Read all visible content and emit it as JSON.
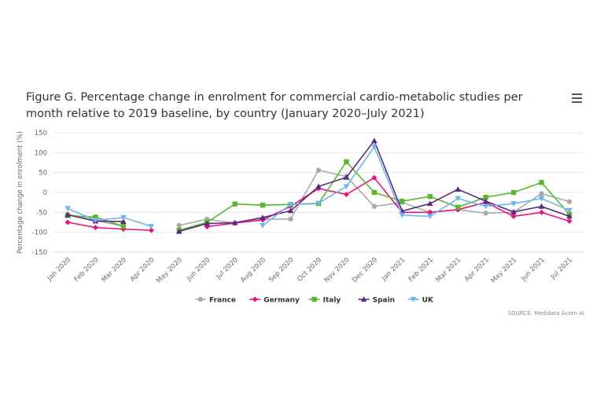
{
  "chart_data": {
    "type": "line",
    "title": "Figure G. Percentage change in enrolment for commercial cardio-metabolic studies per month relative to 2019 baseline, by country (January 2020–July 2021)",
    "xlabel": "",
    "ylabel": "Percentage change in enrolment (%)",
    "ylim": [
      -150,
      150
    ],
    "yticks": [
      150,
      100,
      50,
      0,
      -50,
      -100,
      -150
    ],
    "grid": true,
    "legend_position": "bottom",
    "categories": [
      "Jan 2020",
      "Feb 2020",
      "Mar 2020",
      "Apr 2020",
      "May 2020",
      "Jun 2020",
      "Jul 2020",
      "Aug 2020",
      "Sep 2020",
      "Oct 2020",
      "Nov 2020",
      "Dec 2020",
      "Jan 2021",
      "Feb 2021",
      "Mar 2021",
      "Apr 2021",
      "May 2021",
      "Jun 2021",
      "Jul 2021"
    ],
    "series": [
      {
        "name": "France",
        "color": "#aaaaaa",
        "marker": "circle",
        "values": [
          -55,
          -70,
          -85,
          null,
          -83,
          -67,
          -77,
          -67,
          -67,
          56,
          40,
          -35,
          -25,
          -50,
          -43,
          -52,
          -50,
          -3,
          -23
        ]
      },
      {
        "name": "Germany",
        "color": "#e6147a",
        "marker": "diamond",
        "values": [
          -75,
          -88,
          -92,
          -95,
          null,
          -86,
          -77,
          -69,
          -35,
          10,
          -5,
          37,
          -50,
          -50,
          -43,
          -25,
          -60,
          -50,
          -72
        ]
      },
      {
        "name": "Italy",
        "color": "#5cb531",
        "marker": "square",
        "values": [
          -58,
          -62,
          -85,
          null,
          -95,
          -75,
          -29,
          -32,
          -30,
          -28,
          77,
          0,
          -22,
          -10,
          -37,
          -12,
          0,
          25,
          -55
        ]
      },
      {
        "name": "Spain",
        "color": "#5b2a7e",
        "marker": "triangle",
        "values": [
          -56,
          -72,
          -73,
          null,
          -98,
          -78,
          -76,
          -63,
          -46,
          15,
          38,
          130,
          -47,
          -28,
          8,
          -22,
          -49,
          -35,
          -60
        ]
      },
      {
        "name": "UK",
        "color": "#6fb5e8",
        "marker": "triangle-down",
        "values": [
          -40,
          -70,
          -63,
          -85,
          null,
          null,
          null,
          -83,
          -30,
          -27,
          15,
          115,
          -57,
          -60,
          -15,
          -35,
          -28,
          -15,
          -45
        ]
      }
    ]
  },
  "source": "SOURCE: Medidata Acorn AI",
  "menu_icon": "hamburger-menu-icon"
}
